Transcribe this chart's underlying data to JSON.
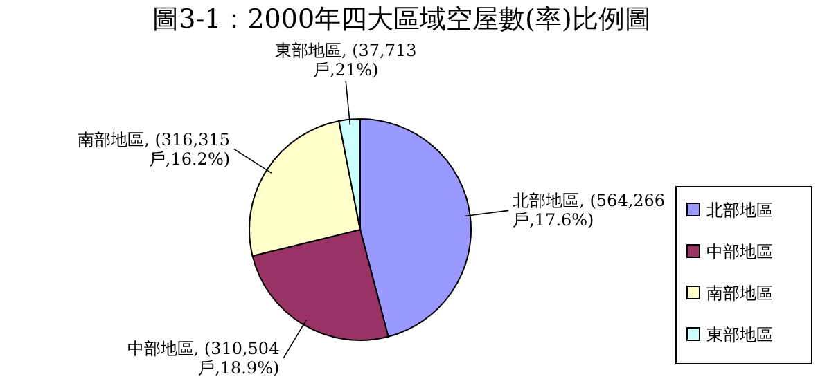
{
  "chart_data": {
    "type": "pie",
    "title": "圖3-1：2000年四大區域空屋數(率)比例圖",
    "categories": [
      "北部地區",
      "中部地區",
      "南部地區",
      "東部地區"
    ],
    "values": [
      564266,
      310504,
      316315,
      37713
    ],
    "value_labels": [
      ", (564,266戶,17.6%)",
      ", (310,504戶,18.9%)",
      ", (316,315戶,16.2%)",
      ", (37,713戶,21%)"
    ],
    "colors": [
      "#9999ff",
      "#993366",
      "#ffffcc",
      "#ccffff"
    ],
    "legend": "right"
  }
}
